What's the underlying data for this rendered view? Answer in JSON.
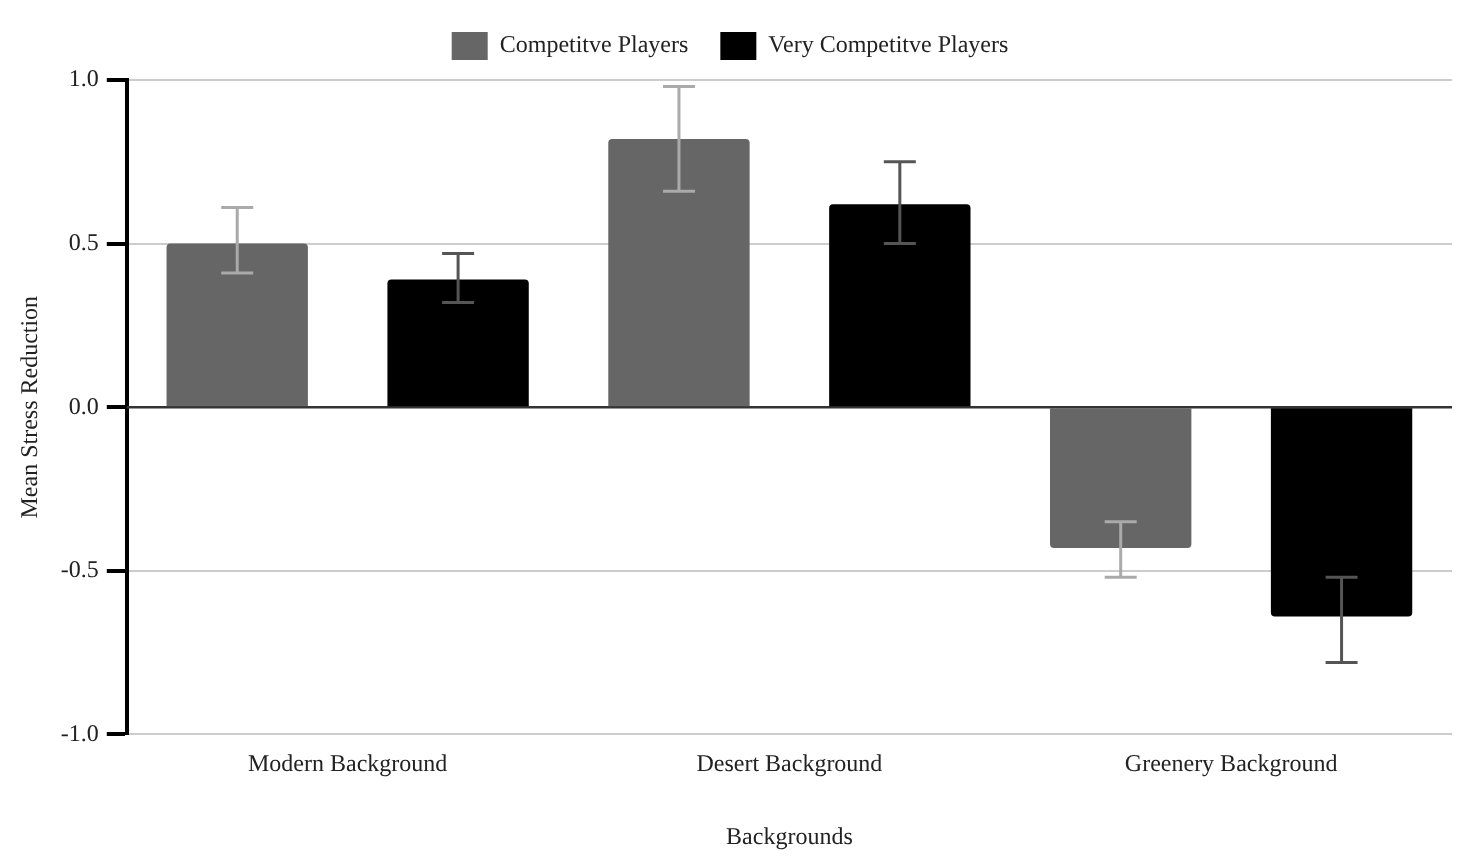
{
  "chart_data": {
    "type": "bar",
    "xlabel": "Backgrounds",
    "ylabel": "Mean Stress Reduction",
    "categories": [
      "Modern Background",
      "Desert Background",
      "Greenery Background"
    ],
    "series": [
      {
        "name": "Competitve Players",
        "color": "#666666",
        "values": [
          0.5,
          0.82,
          -0.43
        ],
        "errors": [
          [
            0.41,
            0.61
          ],
          [
            0.66,
            0.98
          ],
          [
            -0.52,
            -0.35
          ]
        ]
      },
      {
        "name": "Very Competitve Players",
        "color": "#000000",
        "values": [
          0.39,
          0.62,
          -0.64
        ],
        "errors": [
          [
            0.32,
            0.47
          ],
          [
            0.5,
            0.75
          ],
          [
            -0.78,
            -0.52
          ]
        ]
      }
    ],
    "ylim": [
      -1,
      1
    ],
    "yticks": [
      {
        "value": -1,
        "label": "-1.0"
      },
      {
        "value": -0.5,
        "label": "-0.5"
      },
      {
        "value": 0,
        "label": "0.0"
      },
      {
        "value": 0.5,
        "label": "0.5"
      },
      {
        "value": 1,
        "label": "1.0"
      }
    ],
    "grid": "y",
    "legend": "top"
  }
}
